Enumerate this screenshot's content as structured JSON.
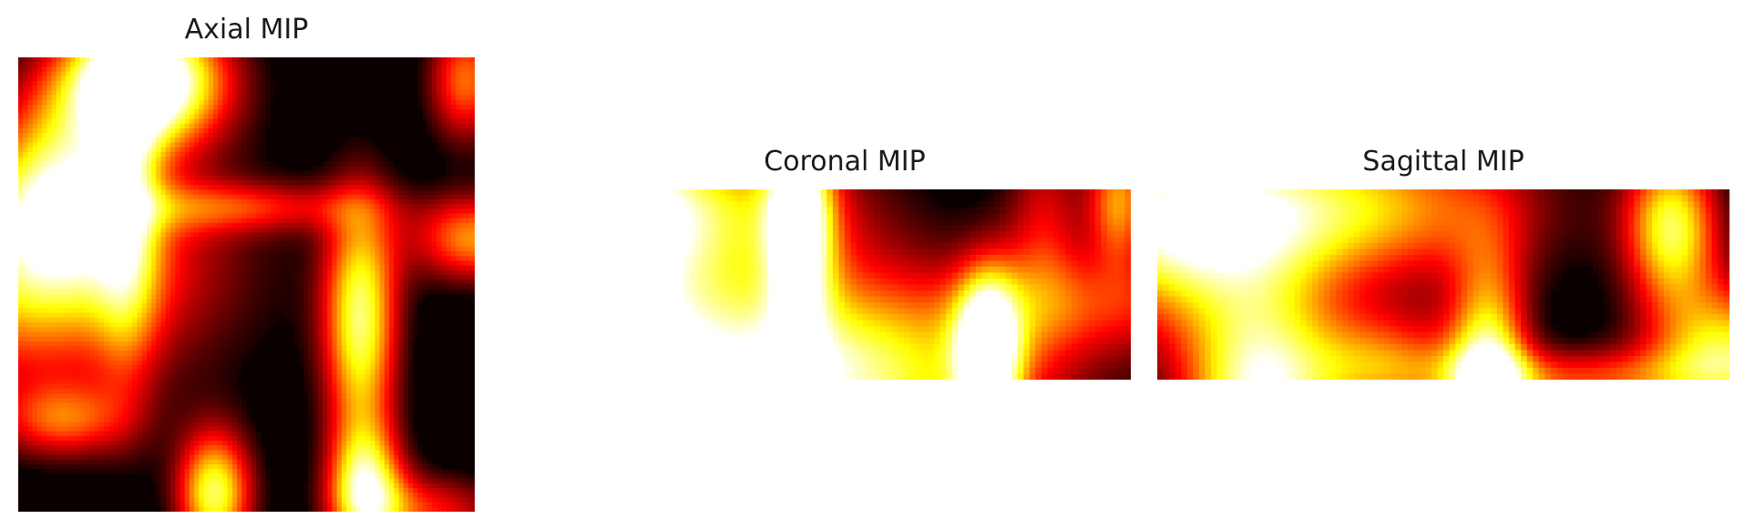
{
  "figure": {
    "colormap": "hot",
    "colors": [
      "#0a0000",
      "#ff0000",
      "#ffff00",
      "#ffffff"
    ]
  },
  "chart_data": [
    {
      "type": "heatmap",
      "title": "Axial MIP",
      "grid": false,
      "axes_visible": false,
      "vmin": 0,
      "vmax": 1,
      "blobs": [
        {
          "x": 0.27,
          "y": 0.05,
          "sx": 0.13,
          "sy": 0.1,
          "a": 1.05
        },
        {
          "x": 0.28,
          "y": 0.05,
          "sx": 0.12,
          "sy": 0.1,
          "a": 0.35
        },
        {
          "x": 0.02,
          "y": 0.45,
          "sx": 0.3,
          "sy": 0.2,
          "a": 0.85
        },
        {
          "x": 0.24,
          "y": 0.32,
          "sx": 0.05,
          "sy": 0.3,
          "a": 0.45
        },
        {
          "x": 0.75,
          "y": 0.58,
          "sx": 0.06,
          "sy": 0.2,
          "a": 0.95
        },
        {
          "x": 0.43,
          "y": 0.96,
          "sx": 0.06,
          "sy": 0.1,
          "a": 0.95
        },
        {
          "x": 0.76,
          "y": 0.95,
          "sx": 0.06,
          "sy": 0.1,
          "a": 0.85
        },
        {
          "x": 0.98,
          "y": 0.05,
          "sx": 0.06,
          "sy": 0.1,
          "a": 0.65
        },
        {
          "x": 1.0,
          "y": 0.4,
          "sx": 0.1,
          "sy": 0.07,
          "a": 0.7
        },
        {
          "x": 0.1,
          "y": 0.8,
          "sx": 0.1,
          "sy": 0.06,
          "a": 0.5
        },
        {
          "x": 0.9,
          "y": 1.0,
          "sx": 0.12,
          "sy": 0.06,
          "a": 0.5
        },
        {
          "x": 0.5,
          "y": 0.33,
          "sx": 0.2,
          "sy": 0.04,
          "a": 0.4
        },
        {
          "x": 0.1,
          "y": 0.3,
          "sx": 0.1,
          "sy": 0.15,
          "a": 0.6
        }
      ]
    },
    {
      "type": "heatmap",
      "title": "Coronal MIP",
      "grid": false,
      "axes_visible": false,
      "vmin": 0,
      "vmax": 1,
      "blobs": [
        {
          "x": 0.4,
          "y": 1.0,
          "sx": 0.3,
          "sy": 0.4,
          "a": 1.15
        },
        {
          "x": 0.0,
          "y": 0.7,
          "sx": 0.15,
          "sy": 0.35,
          "a": 0.95
        },
        {
          "x": 0.42,
          "y": 0.15,
          "sx": 0.04,
          "sy": 0.4,
          "a": 0.95
        },
        {
          "x": 0.75,
          "y": 0.85,
          "sx": 0.04,
          "sy": 0.3,
          "a": 1.0
        },
        {
          "x": 0.05,
          "y": 0.05,
          "sx": 0.12,
          "sy": 0.3,
          "a": 0.8
        },
        {
          "x": 0.25,
          "y": 0.1,
          "sx": 0.2,
          "sy": 0.3,
          "a": 0.7
        },
        {
          "x": 0.98,
          "y": 0.05,
          "sx": 0.04,
          "sy": 0.25,
          "a": 0.7
        },
        {
          "x": 1.0,
          "y": 0.6,
          "sx": 0.2,
          "sy": 0.2,
          "a": 0.4
        },
        {
          "x": 0.85,
          "y": 0.15,
          "sx": 0.05,
          "sy": 0.4,
          "a": 0.4
        }
      ]
    },
    {
      "type": "heatmap",
      "title": "Sagittal MIP",
      "grid": false,
      "axes_visible": false,
      "vmin": 0,
      "vmax": 1,
      "blobs": [
        {
          "x": 0.18,
          "y": 1.1,
          "sx": 0.1,
          "sy": 0.45,
          "a": 1.05
        },
        {
          "x": 0.58,
          "y": 1.0,
          "sx": 0.05,
          "sy": 0.45,
          "a": 0.95
        },
        {
          "x": 0.9,
          "y": 0.2,
          "sx": 0.06,
          "sy": 0.3,
          "a": 0.9
        },
        {
          "x": 1.0,
          "y": 0.85,
          "sx": 0.1,
          "sy": 0.25,
          "a": 0.85
        },
        {
          "x": 0.3,
          "y": 0.1,
          "sx": 0.25,
          "sy": 0.3,
          "a": 0.85
        },
        {
          "x": 0.0,
          "y": 0.2,
          "sx": 0.15,
          "sy": 0.4,
          "a": 0.75
        },
        {
          "x": 0.4,
          "y": 0.9,
          "sx": 0.1,
          "sy": 0.2,
          "a": 0.55
        },
        {
          "x": 0.72,
          "y": 1.0,
          "sx": 0.2,
          "sy": 0.12,
          "a": 0.55
        }
      ]
    }
  ]
}
